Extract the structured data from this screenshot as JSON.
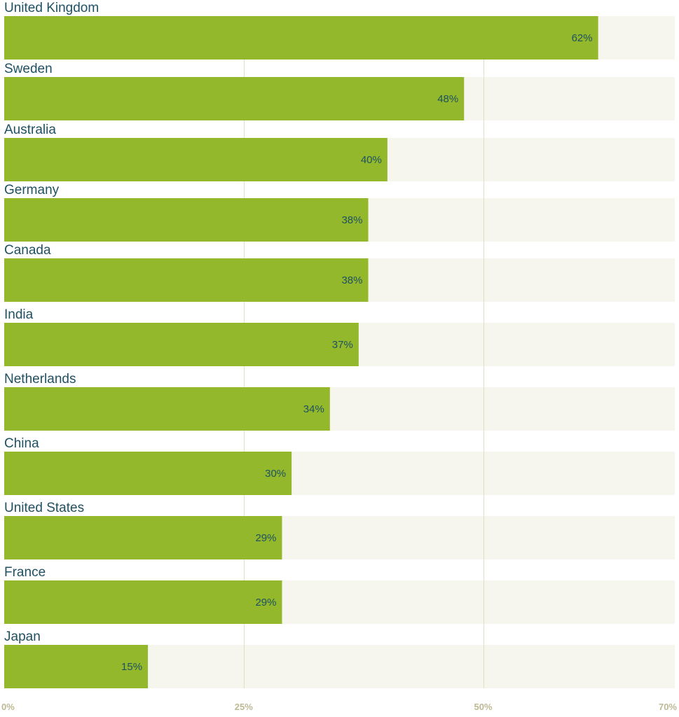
{
  "chart_data": {
    "type": "bar",
    "orientation": "horizontal",
    "categories": [
      "United Kingdom",
      "Sweden",
      "Australia",
      "Germany",
      "Canada",
      "India",
      "Netherlands",
      "China",
      "United States",
      "France",
      "Japan"
    ],
    "values": [
      62,
      48,
      40,
      38,
      38,
      37,
      34,
      30,
      29,
      29,
      15
    ],
    "value_labels": [
      "62%",
      "48%",
      "40%",
      "38%",
      "38%",
      "37%",
      "34%",
      "30%",
      "29%",
      "29%",
      "15%"
    ],
    "title": "",
    "xlabel": "",
    "ylabel": "",
    "xlim": [
      0,
      70
    ],
    "x_ticks": [
      0,
      25,
      50,
      70
    ],
    "x_tick_labels": [
      "0%",
      "25%",
      "50%",
      "70%"
    ],
    "grid": "vertical",
    "legend": "none",
    "colors": {
      "bar": "#93b82b",
      "track": "#f6f6ef",
      "gridline": "#dfdfc8",
      "category_text": "#1f5162",
      "value_text": "#1f5162",
      "tick_text": "#bdb894"
    }
  }
}
